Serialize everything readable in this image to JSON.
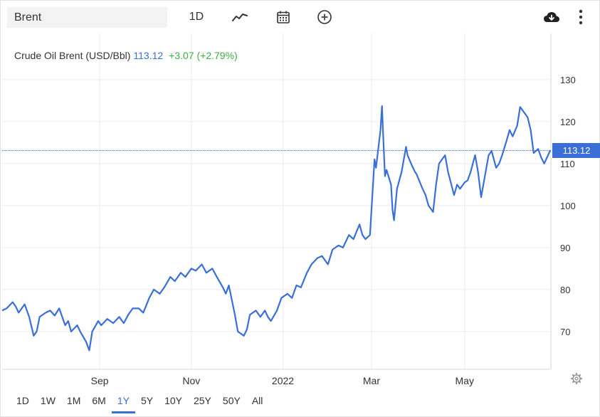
{
  "toolbar": {
    "search_value": "Brent",
    "interval_label": "1D",
    "icons": [
      "line-chart-icon",
      "calendar-icon",
      "add-circle-icon",
      "cloud-download-icon",
      "more-vertical-icon"
    ]
  },
  "legend": {
    "name": "Crude Oil Brent (USD/Bbl)",
    "price": "113.12",
    "change": "+3.07 (+2.79%)"
  },
  "colors": {
    "line": "#3b6fd8",
    "positive": "#3cb043",
    "grid": "#ececec"
  },
  "ranges": {
    "items": [
      "1D",
      "1W",
      "1M",
      "6M",
      "1Y",
      "5Y",
      "10Y",
      "25Y",
      "50Y",
      "All"
    ],
    "active": "1Y"
  },
  "chart_data": {
    "type": "line",
    "title": "",
    "xlabel": "",
    "ylabel": "",
    "x_start": "2021-06-28",
    "x_end": "2022-06-28",
    "ylim": [
      61,
      141
    ],
    "yticks": [
      70,
      80,
      90,
      100,
      110,
      120,
      130
    ],
    "xticks": [
      {
        "label": "Sep",
        "date": "2021-09-01"
      },
      {
        "label": "Nov",
        "date": "2021-11-01"
      },
      {
        "label": "2022",
        "date": "2022-01-01"
      },
      {
        "label": "Mar",
        "date": "2022-03-01"
      },
      {
        "label": "May",
        "date": "2022-05-02"
      }
    ],
    "last_value": "113.12",
    "grid": true,
    "series": [
      {
        "points": [
          [
            "2021-06-28",
            75
          ],
          [
            "2021-07-01",
            75.5
          ],
          [
            "2021-07-05",
            77
          ],
          [
            "2021-07-07",
            76
          ],
          [
            "2021-07-09",
            74.5
          ],
          [
            "2021-07-13",
            76.5
          ],
          [
            "2021-07-16",
            73.5
          ],
          [
            "2021-07-19",
            69
          ],
          [
            "2021-07-21",
            70
          ],
          [
            "2021-07-23",
            73.5
          ],
          [
            "2021-07-27",
            74.5
          ],
          [
            "2021-07-30",
            75
          ],
          [
            "2021-08-02",
            73.8
          ],
          [
            "2021-08-05",
            75.5
          ],
          [
            "2021-08-09",
            71.5
          ],
          [
            "2021-08-11",
            72.5
          ],
          [
            "2021-08-13",
            70
          ],
          [
            "2021-08-17",
            71.5
          ],
          [
            "2021-08-19",
            70
          ],
          [
            "2021-08-23",
            67.5
          ],
          [
            "2021-08-25",
            65.5
          ],
          [
            "2021-08-27",
            70
          ],
          [
            "2021-08-31",
            72.5
          ],
          [
            "2021-09-02",
            71.5
          ],
          [
            "2021-09-06",
            73
          ],
          [
            "2021-09-08",
            72.5
          ],
          [
            "2021-09-10",
            72
          ],
          [
            "2021-09-14",
            73.5
          ],
          [
            "2021-09-17",
            72
          ],
          [
            "2021-09-20",
            74
          ],
          [
            "2021-09-23",
            75.5
          ],
          [
            "2021-09-27",
            75.5
          ],
          [
            "2021-09-30",
            74.5
          ],
          [
            "2021-10-04",
            78
          ],
          [
            "2021-10-07",
            80
          ],
          [
            "2021-10-11",
            79
          ],
          [
            "2021-10-14",
            80.5
          ],
          [
            "2021-10-18",
            83
          ],
          [
            "2021-10-21",
            82
          ],
          [
            "2021-10-25",
            84
          ],
          [
            "2021-10-28",
            83
          ],
          [
            "2021-11-01",
            85
          ],
          [
            "2021-11-04",
            84.5
          ],
          [
            "2021-11-08",
            86
          ],
          [
            "2021-11-11",
            84
          ],
          [
            "2021-11-15",
            85
          ],
          [
            "2021-11-18",
            83
          ],
          [
            "2021-11-22",
            80.5
          ],
          [
            "2021-11-24",
            79
          ],
          [
            "2021-11-26",
            81
          ],
          [
            "2021-11-30",
            74
          ],
          [
            "2021-12-02",
            70
          ],
          [
            "2021-12-06",
            69
          ],
          [
            "2021-12-08",
            70.5
          ],
          [
            "2021-12-10",
            74
          ],
          [
            "2021-12-14",
            75
          ],
          [
            "2021-12-17",
            73.5
          ],
          [
            "2021-12-20",
            75
          ],
          [
            "2021-12-22",
            73.5
          ],
          [
            "2021-12-24",
            72.5
          ],
          [
            "2021-12-28",
            75
          ],
          [
            "2021-12-31",
            78
          ],
          [
            "2022-01-04",
            79
          ],
          [
            "2022-01-07",
            78
          ],
          [
            "2022-01-10",
            81
          ],
          [
            "2022-01-13",
            80.5
          ],
          [
            "2022-01-17",
            84
          ],
          [
            "2022-01-20",
            86
          ],
          [
            "2022-01-24",
            87.5
          ],
          [
            "2022-01-27",
            88
          ],
          [
            "2022-01-31",
            86
          ],
          [
            "2022-02-03",
            89.5
          ],
          [
            "2022-02-07",
            90.5
          ],
          [
            "2022-02-10",
            90
          ],
          [
            "2022-02-14",
            93
          ],
          [
            "2022-02-17",
            92
          ],
          [
            "2022-02-21",
            95.5
          ],
          [
            "2022-02-23",
            93
          ],
          [
            "2022-02-25",
            92
          ],
          [
            "2022-02-28",
            93
          ],
          [
            "2022-03-02",
            105
          ],
          [
            "2022-03-03",
            111
          ],
          [
            "2022-03-04",
            109
          ],
          [
            "2022-03-07",
            118
          ],
          [
            "2022-03-08",
            123.7
          ],
          [
            "2022-03-09",
            115
          ],
          [
            "2022-03-10",
            107
          ],
          [
            "2022-03-11",
            108.5
          ],
          [
            "2022-03-14",
            105
          ],
          [
            "2022-03-15",
            99
          ],
          [
            "2022-03-16",
            96.5
          ],
          [
            "2022-03-18",
            104
          ],
          [
            "2022-03-21",
            108
          ],
          [
            "2022-03-23",
            112
          ],
          [
            "2022-03-24",
            114
          ],
          [
            "2022-03-25",
            112
          ],
          [
            "2022-03-28",
            109.5
          ],
          [
            "2022-03-30",
            108
          ],
          [
            "2022-03-31",
            107.5
          ],
          [
            "2022-04-04",
            104
          ],
          [
            "2022-04-06",
            102.5
          ],
          [
            "2022-04-08",
            100
          ],
          [
            "2022-04-11",
            98.5
          ],
          [
            "2022-04-13",
            105
          ],
          [
            "2022-04-15",
            110
          ],
          [
            "2022-04-19",
            112
          ],
          [
            "2022-04-21",
            108
          ],
          [
            "2022-04-25",
            102.5
          ],
          [
            "2022-04-27",
            105
          ],
          [
            "2022-04-29",
            104
          ],
          [
            "2022-05-02",
            105.5
          ],
          [
            "2022-05-04",
            106
          ],
          [
            "2022-05-06",
            108
          ],
          [
            "2022-05-09",
            112
          ],
          [
            "2022-05-11",
            108
          ],
          [
            "2022-05-13",
            102
          ],
          [
            "2022-05-16",
            108
          ],
          [
            "2022-05-18",
            112
          ],
          [
            "2022-05-20",
            113
          ],
          [
            "2022-05-23",
            109
          ],
          [
            "2022-05-25",
            110
          ],
          [
            "2022-05-27",
            112
          ],
          [
            "2022-05-30",
            115.5
          ],
          [
            "2022-06-01",
            118
          ],
          [
            "2022-06-03",
            116.5
          ],
          [
            "2022-06-06",
            119
          ],
          [
            "2022-06-08",
            123.5
          ],
          [
            "2022-06-10",
            122.5
          ],
          [
            "2022-06-13",
            121
          ],
          [
            "2022-06-15",
            118
          ],
          [
            "2022-06-17",
            112.5
          ],
          [
            "2022-06-20",
            113.5
          ],
          [
            "2022-06-22",
            111.5
          ],
          [
            "2022-06-24",
            110
          ],
          [
            "2022-06-28",
            113.12
          ]
        ]
      }
    ]
  }
}
